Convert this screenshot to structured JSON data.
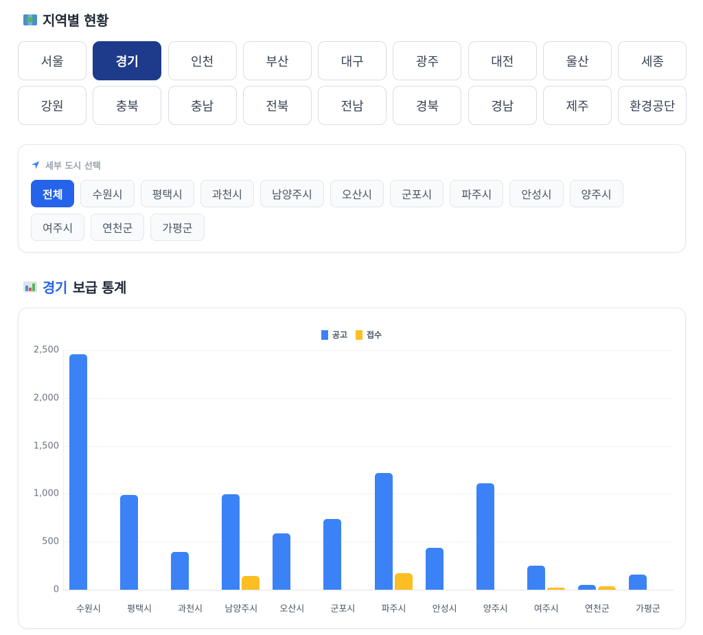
{
  "region_section": {
    "icon": "world-map-icon",
    "title": "지역별 현황",
    "regions": [
      {
        "label": "서울",
        "active": false
      },
      {
        "label": "경기",
        "active": true
      },
      {
        "label": "인천",
        "active": false
      },
      {
        "label": "부산",
        "active": false
      },
      {
        "label": "대구",
        "active": false
      },
      {
        "label": "광주",
        "active": false
      },
      {
        "label": "대전",
        "active": false
      },
      {
        "label": "울산",
        "active": false
      },
      {
        "label": "세종",
        "active": false
      },
      {
        "label": "강원",
        "active": false
      },
      {
        "label": "충북",
        "active": false
      },
      {
        "label": "충남",
        "active": false
      },
      {
        "label": "전북",
        "active": false
      },
      {
        "label": "전남",
        "active": false
      },
      {
        "label": "경북",
        "active": false
      },
      {
        "label": "경남",
        "active": false
      },
      {
        "label": "제주",
        "active": false
      },
      {
        "label": "환경공단",
        "active": false
      }
    ]
  },
  "city_filter": {
    "icon": "location-arrow-icon",
    "label": "세부 도시 선택",
    "cities": [
      {
        "label": "전체",
        "active": true
      },
      {
        "label": "수원시",
        "active": false
      },
      {
        "label": "평택시",
        "active": false
      },
      {
        "label": "과천시",
        "active": false
      },
      {
        "label": "남양주시",
        "active": false
      },
      {
        "label": "오산시",
        "active": false
      },
      {
        "label": "군포시",
        "active": false
      },
      {
        "label": "파주시",
        "active": false
      },
      {
        "label": "안성시",
        "active": false
      },
      {
        "label": "양주시",
        "active": false
      },
      {
        "label": "여주시",
        "active": false
      },
      {
        "label": "연천군",
        "active": false
      },
      {
        "label": "가평군",
        "active": false
      }
    ]
  },
  "stats_section": {
    "icon": "bar-chart-icon",
    "title_accent": "경기",
    "title_rest": "보급 통계"
  },
  "colors": {
    "announcement": "#3b82f6",
    "received": "#fbbf24",
    "active_region": "#1e3a8a",
    "active_city": "#2563eb"
  },
  "chart_data": {
    "type": "bar",
    "title": "경기 보급 통계",
    "xlabel": "",
    "ylabel": "",
    "categories": [
      "수원시",
      "평택시",
      "과천시",
      "남양주시",
      "오산시",
      "군포시",
      "파주시",
      "안성시",
      "양주시",
      "여주시",
      "연천군",
      "가평군"
    ],
    "series": [
      {
        "name": "공고",
        "color": "#3b82f6",
        "values": [
          2460,
          990,
          395,
          995,
          590,
          740,
          1220,
          440,
          1110,
          250,
          50,
          160
        ]
      },
      {
        "name": "접수",
        "color": "#fbbf24",
        "values": [
          0,
          0,
          0,
          145,
          0,
          0,
          170,
          0,
          0,
          20,
          35,
          0
        ]
      }
    ],
    "ylim": [
      0,
      2500
    ],
    "yticks": [
      "0",
      "500",
      "1,000",
      "1,500",
      "2,000",
      "2,500"
    ],
    "ytick_values": [
      0,
      500,
      1000,
      1500,
      2000,
      2500
    ],
    "grid": true,
    "legend_position": "top"
  }
}
